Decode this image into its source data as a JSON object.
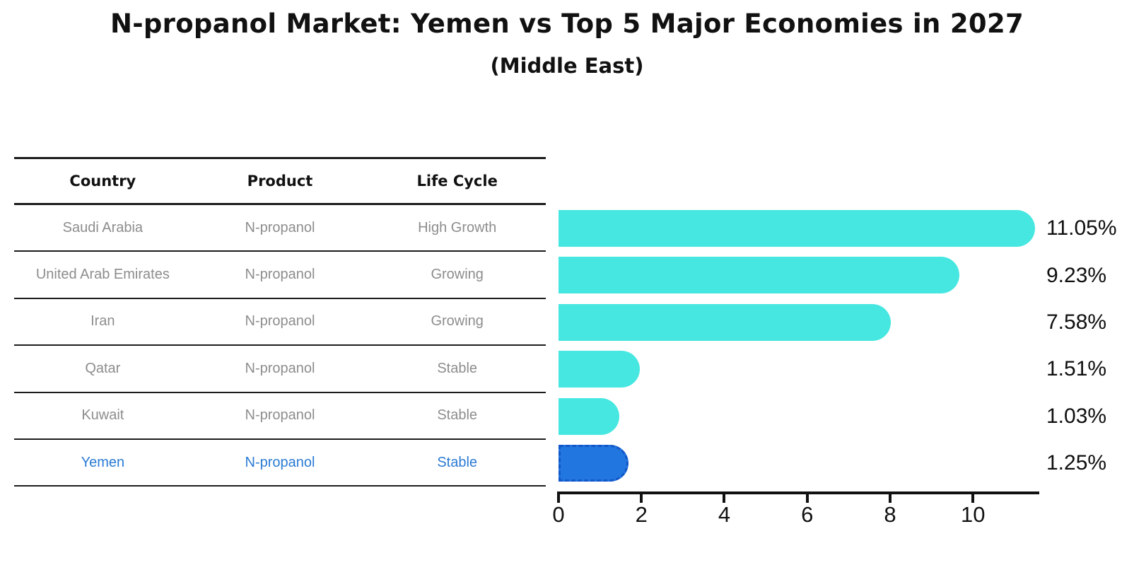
{
  "chart_data": {
    "type": "bar",
    "orientation": "horizontal",
    "title": "N-propanol Market: Yemen vs Top 5 Major Economies in 2027",
    "subtitle": "(Middle East)",
    "categories": [
      "Saudi Arabia",
      "United Arab Emirates",
      "Iran",
      "Qatar",
      "Kuwait",
      "Yemen"
    ],
    "values": [
      11.05,
      9.23,
      7.58,
      1.51,
      1.03,
      1.25
    ],
    "value_labels": [
      "11.05%",
      "9.23%",
      "7.58%",
      "1.51%",
      "1.03%",
      "1.25%"
    ],
    "highlight_index": 5,
    "xlabel": "",
    "ylabel": "",
    "xlim": [
      0,
      11.6
    ],
    "x_ticks": [
      "0",
      "2",
      "4",
      "6",
      "8",
      "10"
    ],
    "grid": false,
    "legend": "none",
    "bar_color": "#46E7E0",
    "highlight_bar_color": "#2176E0",
    "highlight_border_color": "#1257C9"
  },
  "table": {
    "headers": [
      "Country",
      "Product",
      "Life Cycle"
    ],
    "rows": [
      {
        "country": "Saudi Arabia",
        "product": "N-propanol",
        "life_cycle": "High Growth",
        "highlighted": false
      },
      {
        "country": "United Arab Emirates",
        "product": "N-propanol",
        "life_cycle": "Growing",
        "highlighted": false
      },
      {
        "country": "Iran",
        "product": "N-propanol",
        "life_cycle": "Growing",
        "highlighted": false
      },
      {
        "country": "Qatar",
        "product": "N-propanol",
        "life_cycle": "Stable",
        "highlighted": false
      },
      {
        "country": "Kuwait",
        "product": "N-propanol",
        "life_cycle": "Stable",
        "highlighted": false
      },
      {
        "country": "Yemen",
        "product": "N-propanol",
        "life_cycle": "Stable",
        "highlighted": true
      }
    ]
  },
  "colors": {
    "text_primary": "#111111",
    "text_muted": "#8d8d8d",
    "highlight_text": "#2b7bd4",
    "axis": "#111111"
  }
}
